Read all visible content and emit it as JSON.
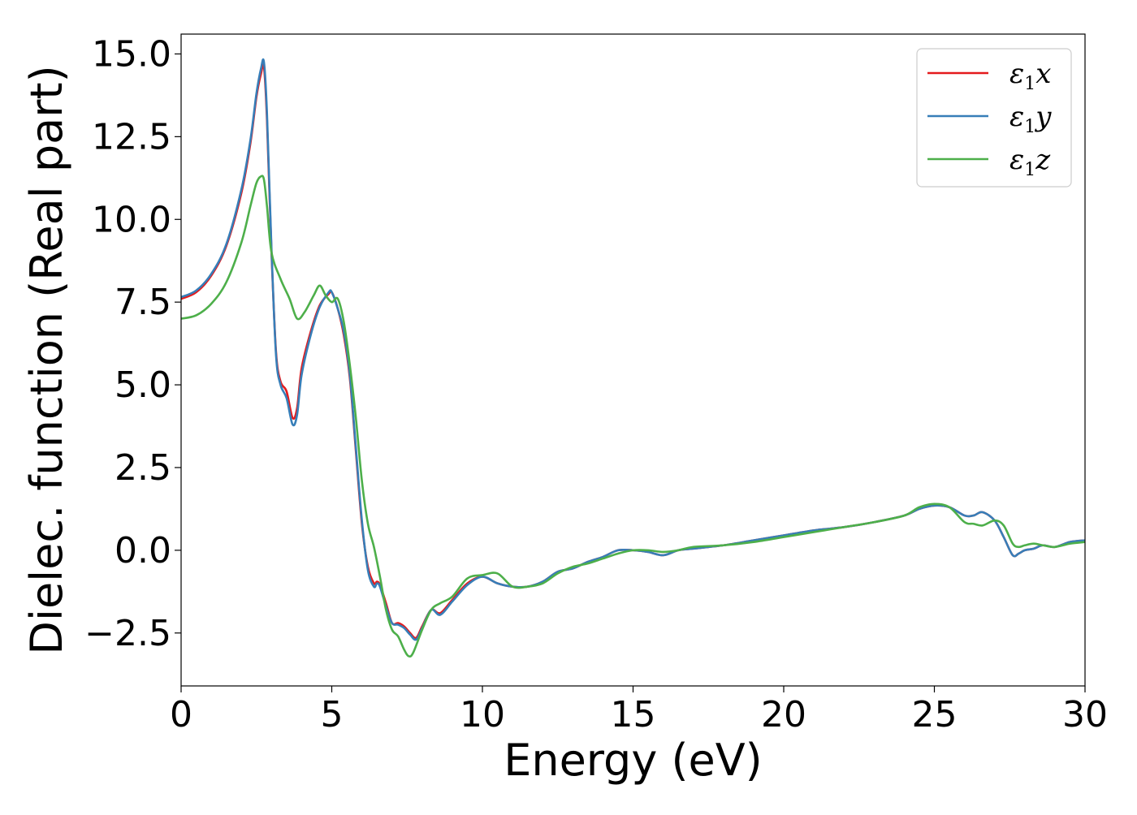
{
  "chart_data": {
    "type": "line",
    "title": "",
    "xlabel": "Energy (eV)",
    "ylabel": "Dielec. function (Real part)",
    "xlim": [
      0,
      30
    ],
    "ylim": [
      -4.1,
      15.6
    ],
    "xticks": [
      0,
      5,
      10,
      15,
      20,
      25,
      30
    ],
    "xtick_labels": [
      "0",
      "5",
      "10",
      "15",
      "20",
      "25",
      "30"
    ],
    "yticks": [
      -2.5,
      0.0,
      2.5,
      5.0,
      7.5,
      10.0,
      12.5,
      15.0
    ],
    "ytick_labels": [
      "−2.5",
      "0.0",
      "2.5",
      "5.0",
      "7.5",
      "10.0",
      "12.5",
      "15.0"
    ],
    "grid": false,
    "legend": {
      "position": "top-right"
    },
    "series": [
      {
        "name": "ε₁x",
        "legend_base": "ε",
        "legend_sub": "1",
        "legend_suffix": "x",
        "color": "#e41a1c",
        "x": [
          0,
          0.5,
          1.0,
          1.5,
          2.0,
          2.3,
          2.5,
          2.65,
          2.75,
          2.85,
          3.0,
          3.15,
          3.3,
          3.5,
          3.7,
          3.85,
          4.0,
          4.3,
          4.6,
          4.9,
          5.0,
          5.2,
          5.4,
          5.6,
          5.8,
          6.0,
          6.2,
          6.4,
          6.5,
          6.6,
          6.8,
          7.0,
          7.2,
          7.4,
          7.6,
          7.8,
          8.0,
          8.3,
          8.6,
          9.0,
          9.5,
          10.0,
          10.5,
          11.0,
          11.5,
          12.0,
          12.5,
          13.0,
          13.5,
          14.0,
          14.5,
          15.0,
          15.5,
          16.0,
          16.5,
          17.0,
          18.0,
          19.0,
          20.0,
          21.0,
          22.0,
          23.0,
          24.0,
          24.5,
          25.0,
          25.5,
          26.0,
          26.3,
          26.6,
          27.0,
          27.3,
          27.6,
          27.8,
          28.0,
          28.3,
          28.6,
          29.0,
          29.5,
          30.0
        ],
        "y": [
          7.6,
          7.8,
          8.3,
          9.2,
          10.8,
          12.3,
          13.7,
          14.4,
          14.6,
          13.0,
          9.0,
          6.0,
          5.1,
          4.8,
          4.0,
          4.3,
          5.5,
          6.6,
          7.4,
          7.75,
          7.8,
          7.3,
          6.5,
          5.2,
          3.0,
          0.8,
          -0.5,
          -1.0,
          -0.95,
          -1.05,
          -1.6,
          -2.2,
          -2.2,
          -2.3,
          -2.5,
          -2.65,
          -2.3,
          -1.8,
          -1.9,
          -1.5,
          -1.0,
          -0.8,
          -1.0,
          -1.1,
          -1.1,
          -0.95,
          -0.65,
          -0.55,
          -0.35,
          -0.2,
          0.0,
          0.0,
          -0.05,
          -0.15,
          0.0,
          0.05,
          0.15,
          0.3,
          0.45,
          0.6,
          0.7,
          0.85,
          1.05,
          1.25,
          1.35,
          1.3,
          1.05,
          1.05,
          1.15,
          0.9,
          0.4,
          -0.15,
          -0.1,
          0.0,
          0.05,
          0.15,
          0.1,
          0.25,
          0.3
        ]
      },
      {
        "name": "ε₁y",
        "legend_base": "ε",
        "legend_sub": "1",
        "legend_suffix": "y",
        "color": "#377eb8",
        "x": [
          0,
          0.5,
          1.0,
          1.5,
          2.0,
          2.3,
          2.5,
          2.65,
          2.75,
          2.85,
          3.0,
          3.15,
          3.3,
          3.5,
          3.7,
          3.85,
          4.0,
          4.3,
          4.6,
          4.9,
          5.0,
          5.2,
          5.4,
          5.6,
          5.8,
          6.0,
          6.2,
          6.4,
          6.5,
          6.6,
          6.8,
          7.0,
          7.2,
          7.4,
          7.6,
          7.8,
          8.0,
          8.3,
          8.6,
          9.0,
          9.5,
          10.0,
          10.5,
          11.0,
          11.5,
          12.0,
          12.5,
          13.0,
          13.5,
          14.0,
          14.5,
          15.0,
          15.5,
          16.0,
          16.5,
          17.0,
          18.0,
          19.0,
          20.0,
          21.0,
          22.0,
          23.0,
          24.0,
          24.5,
          25.0,
          25.5,
          26.0,
          26.3,
          26.6,
          27.0,
          27.3,
          27.6,
          27.8,
          28.0,
          28.3,
          28.6,
          29.0,
          29.5,
          30.0
        ],
        "y": [
          7.65,
          7.85,
          8.35,
          9.25,
          10.9,
          12.4,
          13.8,
          14.55,
          14.75,
          13.2,
          9.1,
          5.9,
          5.0,
          4.6,
          3.8,
          4.1,
          5.3,
          6.5,
          7.35,
          7.8,
          7.8,
          7.3,
          6.6,
          5.3,
          3.1,
          0.9,
          -0.6,
          -1.1,
          -1.0,
          -1.1,
          -1.7,
          -2.2,
          -2.25,
          -2.35,
          -2.55,
          -2.7,
          -2.35,
          -1.8,
          -1.95,
          -1.55,
          -1.05,
          -0.8,
          -1.0,
          -1.1,
          -1.1,
          -0.95,
          -0.65,
          -0.55,
          -0.35,
          -0.2,
          0.0,
          0.0,
          -0.05,
          -0.15,
          0.0,
          0.05,
          0.15,
          0.3,
          0.45,
          0.6,
          0.7,
          0.85,
          1.05,
          1.25,
          1.35,
          1.3,
          1.05,
          1.05,
          1.15,
          0.9,
          0.4,
          -0.15,
          -0.1,
          0.0,
          0.05,
          0.15,
          0.1,
          0.25,
          0.3
        ]
      },
      {
        "name": "ε₁z",
        "legend_base": "ε",
        "legend_sub": "1",
        "legend_suffix": "z",
        "color": "#4daf4a",
        "x": [
          0,
          0.5,
          1.0,
          1.5,
          2.0,
          2.3,
          2.5,
          2.65,
          2.75,
          2.85,
          3.0,
          3.3,
          3.6,
          3.85,
          4.1,
          4.4,
          4.6,
          4.8,
          5.0,
          5.2,
          5.4,
          5.6,
          5.8,
          6.0,
          6.2,
          6.4,
          6.6,
          6.8,
          7.0,
          7.2,
          7.4,
          7.55,
          7.7,
          8.0,
          8.3,
          8.6,
          9.0,
          9.5,
          10.0,
          10.5,
          11.0,
          11.5,
          12.0,
          12.5,
          13.0,
          13.5,
          14.0,
          14.5,
          15.0,
          15.5,
          16.0,
          16.5,
          17.0,
          18.0,
          19.0,
          20.0,
          21.0,
          22.0,
          23.0,
          24.0,
          24.5,
          25.0,
          25.5,
          26.0,
          26.3,
          26.6,
          27.0,
          27.3,
          27.6,
          27.8,
          28.0,
          28.3,
          28.6,
          29.0,
          29.5,
          30.0
        ],
        "y": [
          7.0,
          7.1,
          7.45,
          8.1,
          9.3,
          10.4,
          11.1,
          11.3,
          11.2,
          10.4,
          9.0,
          8.2,
          7.6,
          7.0,
          7.2,
          7.7,
          8.0,
          7.7,
          7.5,
          7.6,
          6.9,
          5.6,
          4.0,
          2.1,
          0.8,
          0.1,
          -0.8,
          -1.8,
          -2.4,
          -2.6,
          -3.0,
          -3.2,
          -3.1,
          -2.4,
          -1.8,
          -1.6,
          -1.4,
          -0.85,
          -0.75,
          -0.7,
          -1.1,
          -1.1,
          -1.0,
          -0.7,
          -0.5,
          -0.4,
          -0.25,
          -0.1,
          0.0,
          0.0,
          -0.05,
          0.0,
          0.1,
          0.15,
          0.25,
          0.4,
          0.55,
          0.7,
          0.85,
          1.05,
          1.3,
          1.4,
          1.3,
          0.85,
          0.8,
          0.75,
          0.9,
          0.75,
          0.2,
          0.1,
          0.15,
          0.2,
          0.15,
          0.1,
          0.2,
          0.25
        ]
      }
    ]
  }
}
